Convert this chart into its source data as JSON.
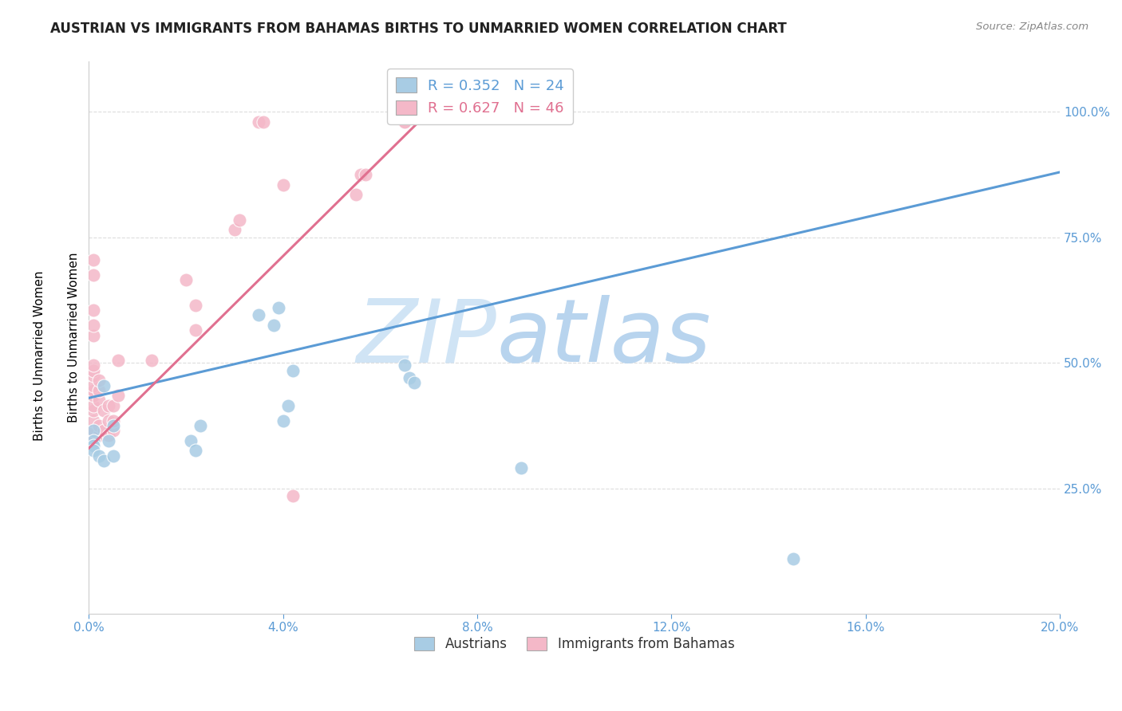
{
  "title": "AUSTRIAN VS IMMIGRANTS FROM BAHAMAS BIRTHS TO UNMARRIED WOMEN CORRELATION CHART",
  "source": "Source: ZipAtlas.com",
  "ylabel": "Births to Unmarried Women",
  "legend_blue": {
    "R": "0.352",
    "N": "24",
    "label": "Austrians"
  },
  "legend_pink": {
    "R": "0.627",
    "N": "46",
    "label": "Immigrants from Bahamas"
  },
  "blue_color": "#a8cce4",
  "pink_color": "#f4b8c8",
  "blue_line_color": "#5b9bd5",
  "pink_line_color": "#e07090",
  "blue_scatter": [
    [
      0.001,
      0.365
    ],
    [
      0.001,
      0.345
    ],
    [
      0.001,
      0.335
    ],
    [
      0.001,
      0.325
    ],
    [
      0.002,
      0.315
    ],
    [
      0.003,
      0.305
    ],
    [
      0.003,
      0.455
    ],
    [
      0.004,
      0.345
    ],
    [
      0.005,
      0.315
    ],
    [
      0.005,
      0.375
    ],
    [
      0.021,
      0.345
    ],
    [
      0.022,
      0.325
    ],
    [
      0.023,
      0.375
    ],
    [
      0.035,
      0.595
    ],
    [
      0.038,
      0.575
    ],
    [
      0.039,
      0.61
    ],
    [
      0.04,
      0.385
    ],
    [
      0.041,
      0.415
    ],
    [
      0.042,
      0.485
    ],
    [
      0.065,
      0.495
    ],
    [
      0.066,
      0.47
    ],
    [
      0.067,
      0.46
    ],
    [
      0.089,
      0.29
    ],
    [
      0.145,
      0.11
    ]
  ],
  "pink_scatter": [
    [
      0.001,
      0.355
    ],
    [
      0.001,
      0.365
    ],
    [
      0.001,
      0.385
    ],
    [
      0.001,
      0.405
    ],
    [
      0.001,
      0.415
    ],
    [
      0.001,
      0.435
    ],
    [
      0.001,
      0.445
    ],
    [
      0.001,
      0.455
    ],
    [
      0.001,
      0.475
    ],
    [
      0.001,
      0.485
    ],
    [
      0.001,
      0.495
    ],
    [
      0.001,
      0.555
    ],
    [
      0.001,
      0.575
    ],
    [
      0.001,
      0.605
    ],
    [
      0.001,
      0.675
    ],
    [
      0.001,
      0.705
    ],
    [
      0.002,
      0.355
    ],
    [
      0.002,
      0.375
    ],
    [
      0.002,
      0.425
    ],
    [
      0.002,
      0.445
    ],
    [
      0.002,
      0.465
    ],
    [
      0.003,
      0.365
    ],
    [
      0.003,
      0.405
    ],
    [
      0.004,
      0.355
    ],
    [
      0.004,
      0.385
    ],
    [
      0.004,
      0.415
    ],
    [
      0.005,
      0.365
    ],
    [
      0.005,
      0.385
    ],
    [
      0.005,
      0.415
    ],
    [
      0.006,
      0.435
    ],
    [
      0.006,
      0.505
    ],
    [
      0.013,
      0.505
    ],
    [
      0.02,
      0.665
    ],
    [
      0.022,
      0.565
    ],
    [
      0.022,
      0.615
    ],
    [
      0.03,
      0.765
    ],
    [
      0.031,
      0.785
    ],
    [
      0.035,
      0.98
    ],
    [
      0.036,
      0.98
    ],
    [
      0.04,
      0.855
    ],
    [
      0.042,
      0.235
    ],
    [
      0.055,
      0.835
    ],
    [
      0.056,
      0.875
    ],
    [
      0.057,
      0.875
    ],
    [
      0.065,
      0.98
    ],
    [
      0.065,
      0.98
    ]
  ],
  "blue_trendline_x": [
    0.0,
    0.2
  ],
  "blue_trendline_y": [
    0.43,
    0.88
  ],
  "pink_trendline_x": [
    0.0,
    0.07
  ],
  "pink_trendline_y": [
    0.33,
    1.0
  ],
  "xmin": 0.0,
  "xmax": 0.2,
  "ymin": 0.0,
  "ymax": 1.1,
  "ytick_values": [
    0.25,
    0.5,
    0.75,
    1.0
  ],
  "xtick_values": [
    0.0,
    0.04,
    0.08,
    0.12,
    0.16,
    0.2
  ],
  "background_color": "#ffffff",
  "grid_color": "#dddddd",
  "watermark_zip": "ZIP",
  "watermark_atlas": "atlas",
  "watermark_color": "#d0e4f5"
}
